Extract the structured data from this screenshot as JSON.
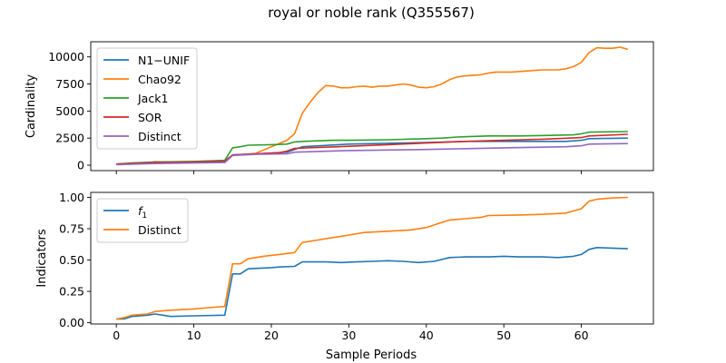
{
  "figure": {
    "title": "royal or noble rank (Q355567)",
    "xlabel": "Sample Periods"
  },
  "chart_data": [
    {
      "type": "line",
      "ylabel": "Cardinality",
      "xlim": [
        -3.3,
        69.3
      ],
      "ylim": [
        -500,
        11400
      ],
      "xticks": [
        0,
        10,
        20,
        30,
        40,
        50,
        60
      ],
      "yticks": [
        0,
        2500,
        5000,
        7500,
        10000
      ],
      "legend": "top-left",
      "series": [
        {
          "name": "N1−UNIF",
          "color": "#1f77b4",
          "points": [
            [
              0,
              100
            ],
            [
              5,
              250
            ],
            [
              10,
              300
            ],
            [
              14,
              350
            ],
            [
              15,
              950
            ],
            [
              18,
              1050
            ],
            [
              22,
              1200
            ],
            [
              23,
              1450
            ],
            [
              24,
              1700
            ],
            [
              30,
              1950
            ],
            [
              40,
              2100
            ],
            [
              45,
              2200
            ],
            [
              50,
              2200
            ],
            [
              55,
              2200
            ],
            [
              58,
              2200
            ],
            [
              60,
              2300
            ],
            [
              61,
              2450
            ],
            [
              66,
              2500
            ]
          ]
        },
        {
          "name": "Chao92",
          "color": "#ff7f0e",
          "points": [
            [
              0,
              100
            ],
            [
              2,
              150
            ],
            [
              4,
              200
            ],
            [
              5,
              320
            ],
            [
              6,
              300
            ],
            [
              10,
              330
            ],
            [
              14,
              420
            ],
            [
              15,
              900
            ],
            [
              16,
              950
            ],
            [
              18,
              1100
            ],
            [
              19,
              1400
            ],
            [
              20,
              1700
            ],
            [
              21,
              2000
            ],
            [
              22,
              2300
            ],
            [
              23,
              2900
            ],
            [
              24,
              4800
            ],
            [
              25,
              5800
            ],
            [
              26,
              6700
            ],
            [
              27,
              7350
            ],
            [
              28,
              7300
            ],
            [
              29,
              7150
            ],
            [
              30,
              7150
            ],
            [
              31,
              7250
            ],
            [
              32,
              7300
            ],
            [
              33,
              7200
            ],
            [
              34,
              7300
            ],
            [
              35,
              7300
            ],
            [
              36,
              7400
            ],
            [
              37,
              7500
            ],
            [
              38,
              7400
            ],
            [
              39,
              7200
            ],
            [
              40,
              7150
            ],
            [
              41,
              7250
            ],
            [
              42,
              7500
            ],
            [
              43,
              7900
            ],
            [
              44,
              8150
            ],
            [
              45,
              8250
            ],
            [
              47,
              8350
            ],
            [
              48,
              8500
            ],
            [
              49,
              8600
            ],
            [
              50,
              8600
            ],
            [
              51,
              8600
            ],
            [
              52,
              8650
            ],
            [
              53,
              8700
            ],
            [
              54,
              8750
            ],
            [
              55,
              8800
            ],
            [
              57,
              8800
            ],
            [
              58,
              8900
            ],
            [
              59,
              9100
            ],
            [
              60,
              9500
            ],
            [
              61,
              10400
            ],
            [
              62,
              10850
            ],
            [
              63,
              10800
            ],
            [
              64,
              10800
            ],
            [
              65,
              10900
            ],
            [
              66,
              10700
            ]
          ]
        },
        {
          "name": "Jack1",
          "color": "#2ca02c",
          "points": [
            [
              0,
              100
            ],
            [
              2,
              200
            ],
            [
              5,
              300
            ],
            [
              10,
              350
            ],
            [
              14,
              450
            ],
            [
              15,
              1600
            ],
            [
              16,
              1700
            ],
            [
              17,
              1850
            ],
            [
              20,
              1900
            ],
            [
              22,
              1950
            ],
            [
              23,
              2150
            ],
            [
              24,
              2200
            ],
            [
              28,
              2300
            ],
            [
              30,
              2300
            ],
            [
              35,
              2350
            ],
            [
              40,
              2450
            ],
            [
              42,
              2500
            ],
            [
              44,
              2600
            ],
            [
              48,
              2700
            ],
            [
              52,
              2700
            ],
            [
              56,
              2750
            ],
            [
              59,
              2800
            ],
            [
              60,
              2900
            ],
            [
              61,
              3050
            ],
            [
              66,
              3100
            ]
          ]
        },
        {
          "name": "SOR",
          "color": "#d62728",
          "points": [
            [
              0,
              100
            ],
            [
              5,
              250
            ],
            [
              10,
              300
            ],
            [
              14,
              380
            ],
            [
              15,
              950
            ],
            [
              18,
              1050
            ],
            [
              21,
              1150
            ],
            [
              22,
              1300
            ],
            [
              23,
              1550
            ],
            [
              30,
              1750
            ],
            [
              35,
              1900
            ],
            [
              40,
              2050
            ],
            [
              45,
              2200
            ],
            [
              50,
              2300
            ],
            [
              55,
              2400
            ],
            [
              60,
              2550
            ],
            [
              61,
              2700
            ],
            [
              66,
              2850
            ]
          ]
        },
        {
          "name": "Distinct",
          "color": "#9467bd",
          "points": [
            [
              0,
              50
            ],
            [
              5,
              150
            ],
            [
              10,
              200
            ],
            [
              14,
              250
            ],
            [
              15,
              900
            ],
            [
              18,
              1000
            ],
            [
              22,
              1050
            ],
            [
              23,
              1200
            ],
            [
              30,
              1350
            ],
            [
              40,
              1450
            ],
            [
              50,
              1600
            ],
            [
              58,
              1700
            ],
            [
              60,
              1800
            ],
            [
              61,
              1950
            ],
            [
              66,
              2000
            ]
          ]
        }
      ]
    },
    {
      "type": "line",
      "ylabel": "Indicators",
      "xlim": [
        -3.3,
        69.3
      ],
      "ylim": [
        -0.01,
        1.04
      ],
      "xticks": [
        0,
        10,
        20,
        30,
        40,
        50,
        60
      ],
      "yticks": [
        0.0,
        0.25,
        0.5,
        0.75,
        1.0
      ],
      "legend": "top-left",
      "series": [
        {
          "name": "f1",
          "color": "#1f77b4",
          "points": [
            [
              0,
              0.03
            ],
            [
              1,
              0.03
            ],
            [
              2,
              0.05
            ],
            [
              4,
              0.06
            ],
            [
              5,
              0.07
            ],
            [
              6,
              0.06
            ],
            [
              7,
              0.05
            ],
            [
              10,
              0.055
            ],
            [
              14,
              0.06
            ],
            [
              15,
              0.39
            ],
            [
              16,
              0.39
            ],
            [
              17,
              0.43
            ],
            [
              20,
              0.44
            ],
            [
              21,
              0.445
            ],
            [
              23,
              0.45
            ],
            [
              24,
              0.485
            ],
            [
              27,
              0.485
            ],
            [
              29,
              0.48
            ],
            [
              31,
              0.485
            ],
            [
              33,
              0.49
            ],
            [
              35,
              0.495
            ],
            [
              37,
              0.49
            ],
            [
              39,
              0.48
            ],
            [
              41,
              0.49
            ],
            [
              43,
              0.52
            ],
            [
              45,
              0.525
            ],
            [
              48,
              0.525
            ],
            [
              50,
              0.53
            ],
            [
              52,
              0.525
            ],
            [
              55,
              0.525
            ],
            [
              57,
              0.52
            ],
            [
              59,
              0.53
            ],
            [
              60,
              0.545
            ],
            [
              61,
              0.585
            ],
            [
              62,
              0.6
            ],
            [
              66,
              0.59
            ]
          ]
        },
        {
          "name": "Distinct",
          "color": "#ff7f0e",
          "points": [
            [
              0,
              0.03
            ],
            [
              1,
              0.04
            ],
            [
              2,
              0.06
            ],
            [
              4,
              0.07
            ],
            [
              5,
              0.09
            ],
            [
              7,
              0.1
            ],
            [
              10,
              0.11
            ],
            [
              12,
              0.12
            ],
            [
              14,
              0.13
            ],
            [
              15,
              0.47
            ],
            [
              16,
              0.47
            ],
            [
              17,
              0.51
            ],
            [
              19,
              0.53
            ],
            [
              21,
              0.545
            ],
            [
              23,
              0.56
            ],
            [
              24,
              0.64
            ],
            [
              26,
              0.66
            ],
            [
              28,
              0.68
            ],
            [
              30,
              0.7
            ],
            [
              32,
              0.72
            ],
            [
              35,
              0.73
            ],
            [
              38,
              0.74
            ],
            [
              40,
              0.76
            ],
            [
              41,
              0.78
            ],
            [
              43,
              0.82
            ],
            [
              45,
              0.83
            ],
            [
              47,
              0.84
            ],
            [
              48,
              0.855
            ],
            [
              52,
              0.86
            ],
            [
              55,
              0.865
            ],
            [
              58,
              0.875
            ],
            [
              60,
              0.91
            ],
            [
              61,
              0.97
            ],
            [
              62,
              0.985
            ],
            [
              64,
              0.995
            ],
            [
              66,
              1.0
            ]
          ]
        }
      ]
    }
  ]
}
